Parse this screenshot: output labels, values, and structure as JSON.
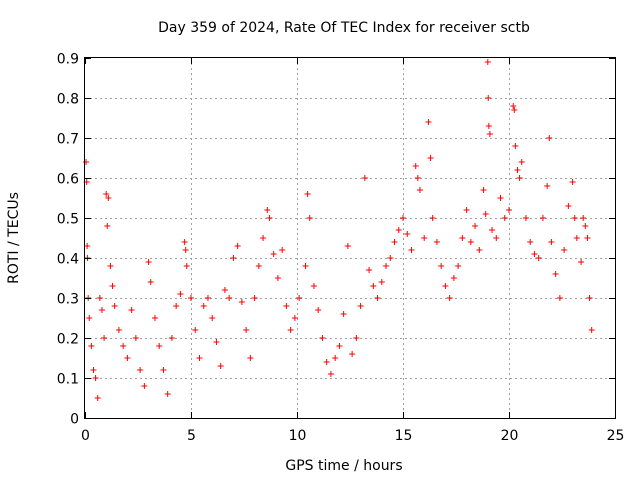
{
  "chart_data": {
    "type": "scatter",
    "title": "Day 359 of 2024, Rate Of TEC Index for receiver sctb",
    "xlabel": "GPS time / hours",
    "ylabel": "ROTI / TECUs",
    "xlim": [
      0,
      25
    ],
    "ylim": [
      0,
      0.9
    ],
    "x_ticks": [
      "0",
      "5",
      "10",
      "15",
      "20",
      "25"
    ],
    "y_ticks": [
      "0",
      "0.1",
      "0.2",
      "0.3",
      "0.4",
      "0.5",
      "0.6",
      "0.7",
      "0.8",
      "0.9"
    ],
    "grid": true,
    "marker": "+",
    "color": "#ff0000",
    "series": [
      {
        "values_note": "",
        "points": [
          [
            0.05,
            0.64
          ],
          [
            0.08,
            0.59
          ],
          [
            0.1,
            0.43
          ],
          [
            0.12,
            0.4
          ],
          [
            0.15,
            0.3
          ],
          [
            0.2,
            0.25
          ],
          [
            0.3,
            0.18
          ],
          [
            0.4,
            0.12
          ],
          [
            0.5,
            0.1
          ],
          [
            0.6,
            0.05
          ],
          [
            0.7,
            0.3
          ],
          [
            0.8,
            0.27
          ],
          [
            0.9,
            0.2
          ],
          [
            1.0,
            0.56
          ],
          [
            1.05,
            0.48
          ],
          [
            1.1,
            0.55
          ],
          [
            1.2,
            0.38
          ],
          [
            1.3,
            0.33
          ],
          [
            1.4,
            0.28
          ],
          [
            1.6,
            0.22
          ],
          [
            1.8,
            0.18
          ],
          [
            2.0,
            0.15
          ],
          [
            2.2,
            0.27
          ],
          [
            2.4,
            0.2
          ],
          [
            2.6,
            0.12
          ],
          [
            2.8,
            0.08
          ],
          [
            3.0,
            0.39
          ],
          [
            3.1,
            0.34
          ],
          [
            3.3,
            0.25
          ],
          [
            3.5,
            0.18
          ],
          [
            3.7,
            0.12
          ],
          [
            3.9,
            0.06
          ],
          [
            4.1,
            0.2
          ],
          [
            4.3,
            0.28
          ],
          [
            4.5,
            0.31
          ],
          [
            4.7,
            0.44
          ],
          [
            4.75,
            0.42
          ],
          [
            4.8,
            0.38
          ],
          [
            5.0,
            0.3
          ],
          [
            5.2,
            0.22
          ],
          [
            5.4,
            0.15
          ],
          [
            5.6,
            0.28
          ],
          [
            5.8,
            0.3
          ],
          [
            6.0,
            0.25
          ],
          [
            6.2,
            0.19
          ],
          [
            6.4,
            0.13
          ],
          [
            6.6,
            0.32
          ],
          [
            6.8,
            0.3
          ],
          [
            7.0,
            0.4
          ],
          [
            7.2,
            0.43
          ],
          [
            7.4,
            0.29
          ],
          [
            7.6,
            0.22
          ],
          [
            7.8,
            0.15
          ],
          [
            8.0,
            0.3
          ],
          [
            8.2,
            0.38
          ],
          [
            8.4,
            0.45
          ],
          [
            8.6,
            0.52
          ],
          [
            8.7,
            0.5
          ],
          [
            8.9,
            0.41
          ],
          [
            9.1,
            0.35
          ],
          [
            9.3,
            0.42
          ],
          [
            9.5,
            0.28
          ],
          [
            9.7,
            0.22
          ],
          [
            9.9,
            0.25
          ],
          [
            10.1,
            0.3
          ],
          [
            10.4,
            0.38
          ],
          [
            10.5,
            0.56
          ],
          [
            10.6,
            0.5
          ],
          [
            10.8,
            0.33
          ],
          [
            11.0,
            0.27
          ],
          [
            11.2,
            0.2
          ],
          [
            11.4,
            0.14
          ],
          [
            11.6,
            0.11
          ],
          [
            11.8,
            0.15
          ],
          [
            12.0,
            0.18
          ],
          [
            12.2,
            0.26
          ],
          [
            12.4,
            0.43
          ],
          [
            12.6,
            0.16
          ],
          [
            12.8,
            0.2
          ],
          [
            13.0,
            0.28
          ],
          [
            13.2,
            0.6
          ],
          [
            13.4,
            0.37
          ],
          [
            13.6,
            0.33
          ],
          [
            13.8,
            0.3
          ],
          [
            14.0,
            0.34
          ],
          [
            14.2,
            0.38
          ],
          [
            14.4,
            0.4
          ],
          [
            14.6,
            0.44
          ],
          [
            14.8,
            0.47
          ],
          [
            15.0,
            0.5
          ],
          [
            15.2,
            0.46
          ],
          [
            15.4,
            0.42
          ],
          [
            15.6,
            0.63
          ],
          [
            15.7,
            0.6
          ],
          [
            15.8,
            0.57
          ],
          [
            16.0,
            0.45
          ],
          [
            16.2,
            0.74
          ],
          [
            16.3,
            0.65
          ],
          [
            16.4,
            0.5
          ],
          [
            16.6,
            0.44
          ],
          [
            16.8,
            0.38
          ],
          [
            17.0,
            0.33
          ],
          [
            17.2,
            0.3
          ],
          [
            17.4,
            0.35
          ],
          [
            17.6,
            0.38
          ],
          [
            17.8,
            0.45
          ],
          [
            18.0,
            0.52
          ],
          [
            18.2,
            0.44
          ],
          [
            18.4,
            0.48
          ],
          [
            18.6,
            0.42
          ],
          [
            18.8,
            0.57
          ],
          [
            18.9,
            0.51
          ],
          [
            19.0,
            0.89
          ],
          [
            19.02,
            0.8
          ],
          [
            19.05,
            0.73
          ],
          [
            19.1,
            0.71
          ],
          [
            19.2,
            0.47
          ],
          [
            19.4,
            0.45
          ],
          [
            19.6,
            0.55
          ],
          [
            19.8,
            0.5
          ],
          [
            20.0,
            0.52
          ],
          [
            20.2,
            0.78
          ],
          [
            20.25,
            0.77
          ],
          [
            20.3,
            0.68
          ],
          [
            20.4,
            0.62
          ],
          [
            20.5,
            0.6
          ],
          [
            20.6,
            0.64
          ],
          [
            20.8,
            0.5
          ],
          [
            21.0,
            0.44
          ],
          [
            21.2,
            0.41
          ],
          [
            21.4,
            0.4
          ],
          [
            21.6,
            0.5
          ],
          [
            21.8,
            0.58
          ],
          [
            21.9,
            0.7
          ],
          [
            22.0,
            0.44
          ],
          [
            22.2,
            0.36
          ],
          [
            22.4,
            0.3
          ],
          [
            22.6,
            0.42
          ],
          [
            22.8,
            0.53
          ],
          [
            23.0,
            0.59
          ],
          [
            23.1,
            0.5
          ],
          [
            23.2,
            0.45
          ],
          [
            23.4,
            0.39
          ],
          [
            23.5,
            0.5
          ],
          [
            23.6,
            0.48
          ],
          [
            23.7,
            0.45
          ],
          [
            23.8,
            0.3
          ],
          [
            23.9,
            0.22
          ]
        ]
      }
    ]
  }
}
